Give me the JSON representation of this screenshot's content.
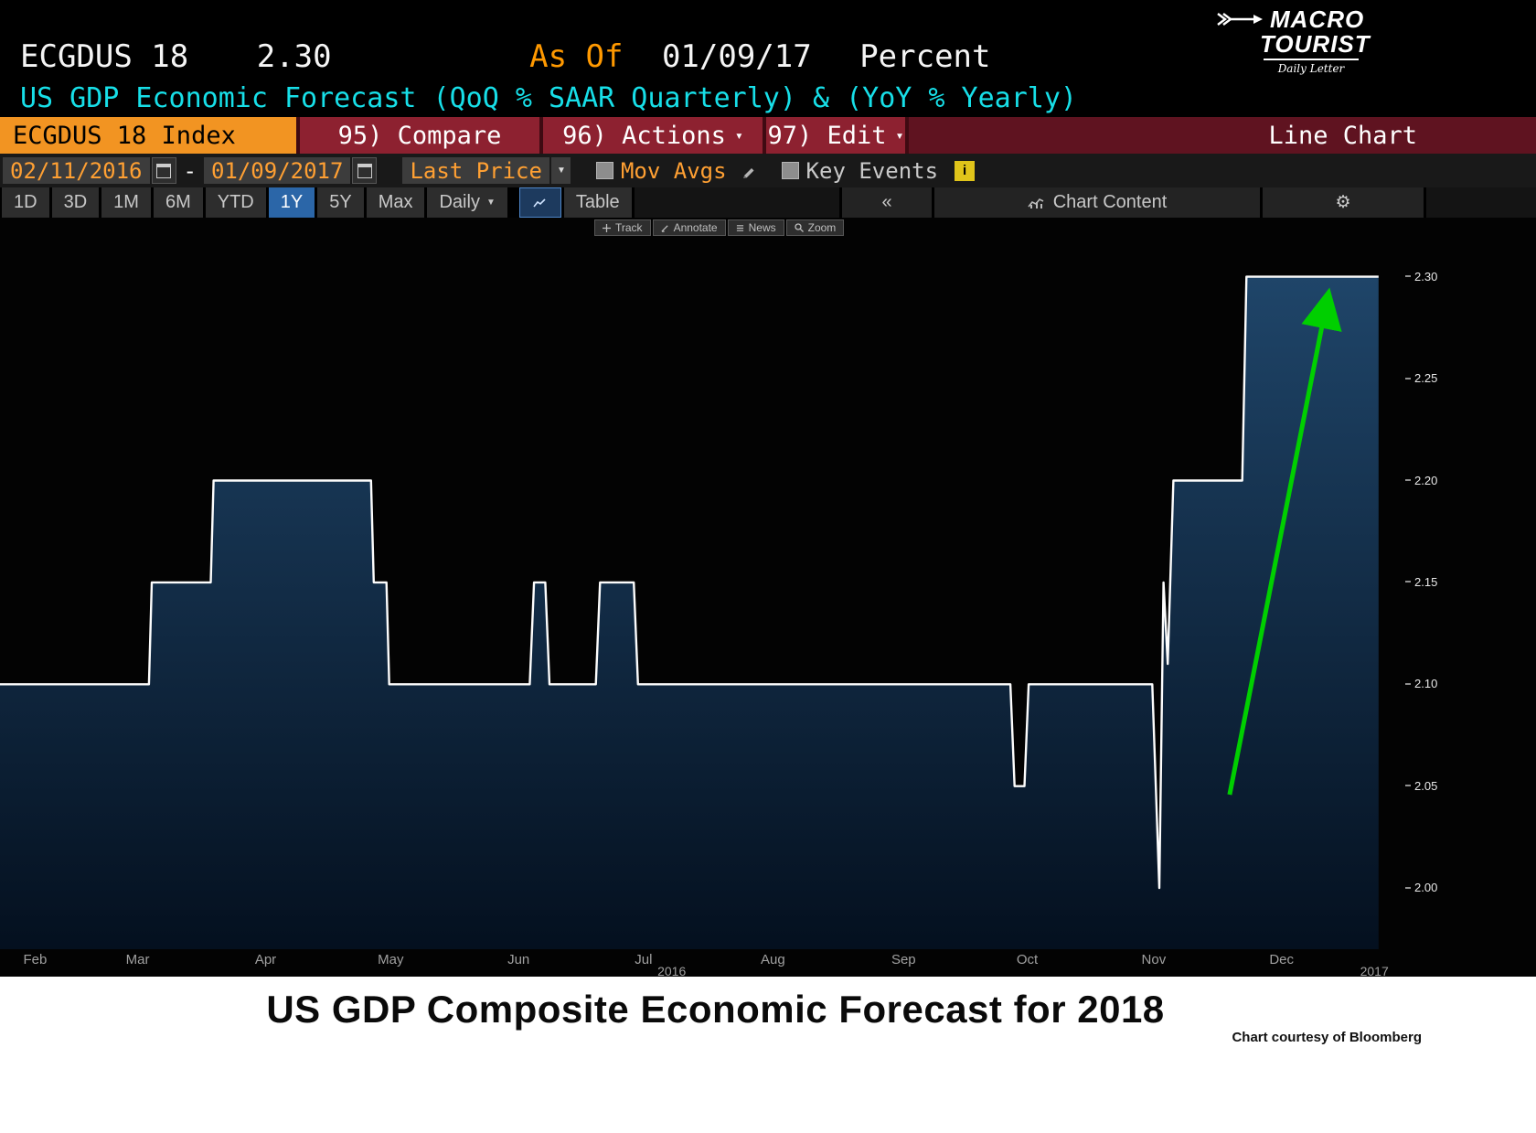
{
  "header": {
    "ticker": "ECGDUS 18",
    "last_value": "2.30",
    "as_of_label": "As Of",
    "as_of_date": "01/09/17",
    "unit_label": "Percent",
    "subtitle": "US GDP Economic Forecast (QoQ % SAAR Quarterly) & (YoY % Yearly)",
    "logo": {
      "name_line1": "MACRO",
      "name_line2": "TOURIST",
      "tagline": "Daily Letter"
    }
  },
  "menu_bar": {
    "security_label": "ECGDUS 18 Index",
    "buttons": [
      {
        "label": "95) Compare",
        "dropdown": false
      },
      {
        "label": "96) Actions",
        "dropdown": true
      },
      {
        "label": "97) Edit",
        "dropdown": true
      }
    ],
    "chart_type_label": "Line Chart"
  },
  "controls_bar": {
    "date_from": "02/11/2016",
    "range_separator": "-",
    "date_to": "01/09/2017",
    "price_field": "Last Price",
    "mov_avgs": "Mov Avgs",
    "key_events": "Key Events",
    "info_badge": "i"
  },
  "period_bar": {
    "tabs": [
      "1D",
      "3D",
      "1M",
      "6M",
      "YTD",
      "1Y",
      "5Y",
      "Max"
    ],
    "selected_tab": "1Y",
    "frequency_label": "Daily",
    "table_label": "Table",
    "collapse_label": "«",
    "chart_content_label": "Chart Content"
  },
  "mini_toolbar": {
    "buttons": [
      "Track",
      "Annotate",
      "News",
      "Zoom"
    ]
  },
  "chart_data": {
    "type": "area",
    "series_name": "ECGDUS 18 Index - Last Price",
    "unit": "Percent",
    "ylim": [
      1.97,
      2.329
    ],
    "y_ticks": [
      2.3,
      2.25,
      2.2,
      2.15,
      2.1,
      2.05,
      2.0
    ],
    "grid": false,
    "legend": "none",
    "x_axis": {
      "months": [
        {
          "label": "Feb",
          "x": 0.025
        },
        {
          "label": "Mar",
          "x": 0.098
        },
        {
          "label": "Apr",
          "x": 0.189
        },
        {
          "label": "May",
          "x": 0.278
        },
        {
          "label": "Jun",
          "x": 0.369
        },
        {
          "label": "Jul",
          "x": 0.458
        },
        {
          "label": "Aug",
          "x": 0.55
        },
        {
          "label": "Sep",
          "x": 0.643
        },
        {
          "label": "Oct",
          "x": 0.731
        },
        {
          "label": "Nov",
          "x": 0.821
        },
        {
          "label": "Dec",
          "x": 0.912
        }
      ],
      "years": [
        {
          "label": "2016",
          "x": 0.478
        },
        {
          "label": "2017",
          "x": 0.978
        }
      ]
    },
    "points": [
      [
        0.0,
        2.1
      ],
      [
        0.106,
        2.1
      ],
      [
        0.108,
        2.15
      ],
      [
        0.15,
        2.15
      ],
      [
        0.152,
        2.2
      ],
      [
        0.264,
        2.2
      ],
      [
        0.266,
        2.15
      ],
      [
        0.275,
        2.15
      ],
      [
        0.277,
        2.1
      ],
      [
        0.377,
        2.1
      ],
      [
        0.38,
        2.15
      ],
      [
        0.388,
        2.15
      ],
      [
        0.391,
        2.1
      ],
      [
        0.424,
        2.1
      ],
      [
        0.427,
        2.15
      ],
      [
        0.451,
        2.15
      ],
      [
        0.454,
        2.1
      ],
      [
        0.719,
        2.1
      ],
      [
        0.722,
        2.05
      ],
      [
        0.729,
        2.05
      ],
      [
        0.732,
        2.1
      ],
      [
        0.82,
        2.1
      ],
      [
        0.825,
        2.0
      ],
      [
        0.828,
        2.15
      ],
      [
        0.831,
        2.11
      ],
      [
        0.835,
        2.2
      ],
      [
        0.884,
        2.2
      ],
      [
        0.887,
        2.3
      ],
      [
        0.981,
        2.3
      ]
    ],
    "annotation_arrow": {
      "x1": 0.875,
      "y1": 0.789,
      "x2": 0.943,
      "y2": 0.126,
      "color": "#00cf00"
    },
    "colors": {
      "line": "#fdfdfd",
      "fill_top": "#1f4569",
      "fill_bottom": "#04101f",
      "background": "#030303"
    }
  },
  "footer": {
    "title": "US GDP Composite Economic Forecast for 2018",
    "credit": "Chart courtesy of Bloomberg"
  }
}
